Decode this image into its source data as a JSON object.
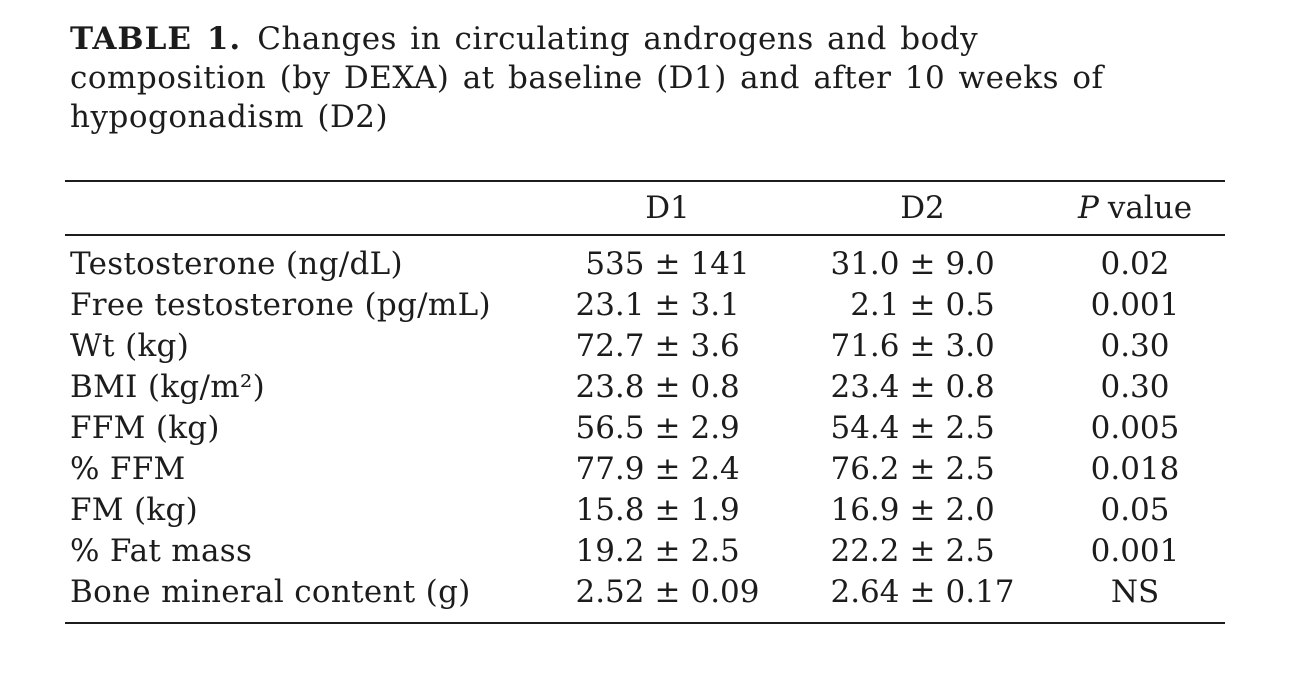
{
  "caption": {
    "label": "TABLE 1.",
    "line1_rest": "Changes in circulating androgens and body",
    "line2": "composition (by DEXA) at baseline (D1) and after 10 weeks of",
    "line3": "hypogonadism (D2)"
  },
  "table": {
    "pm_symbol": "±",
    "headers": {
      "metric": "",
      "d1": "D1",
      "d2": "D2",
      "p_italic": "P",
      "p_rest": "value"
    },
    "rows": [
      {
        "label": "Testosterone (ng/dL)",
        "d1m": "535",
        "d1s": "141",
        "d2m": "31.0",
        "d2s": "9.0",
        "p": "0.02"
      },
      {
        "label": "Free testosterone (pg/mL)",
        "d1m": "23.1",
        "d1s": "3.1",
        "d2m": "2.1",
        "d2s": "0.5",
        "p": "0.001"
      },
      {
        "label": "Wt (kg)",
        "d1m": "72.7",
        "d1s": "3.6",
        "d2m": "71.6",
        "d2s": "3.0",
        "p": "0.30"
      },
      {
        "label": "BMI (kg/m²)",
        "d1m": "23.8",
        "d1s": "0.8",
        "d2m": "23.4",
        "d2s": "0.8",
        "p": "0.30"
      },
      {
        "label": "FFM (kg)",
        "d1m": "56.5",
        "d1s": "2.9",
        "d2m": "54.4",
        "d2s": "2.5",
        "p": "0.005"
      },
      {
        "label": "% FFM",
        "d1m": "77.9",
        "d1s": "2.4",
        "d2m": "76.2",
        "d2s": "2.5",
        "p": "0.018"
      },
      {
        "label": "FM (kg)",
        "d1m": "15.8",
        "d1s": "1.9",
        "d2m": "16.9",
        "d2s": "2.0",
        "p": "0.05"
      },
      {
        "label": "% Fat mass",
        "d1m": "19.2",
        "d1s": "2.5",
        "d2m": "22.2",
        "d2s": "2.5",
        "p": "0.001"
      },
      {
        "label": "Bone mineral content (g)",
        "d1m": "2.52",
        "d1s": "0.09",
        "d2m": "2.64",
        "d2s": "0.17",
        "p": "NS"
      }
    ]
  },
  "colors": {
    "text": "#1c1c1c",
    "rule": "#1c1c1c",
    "background": "#ffffff"
  }
}
